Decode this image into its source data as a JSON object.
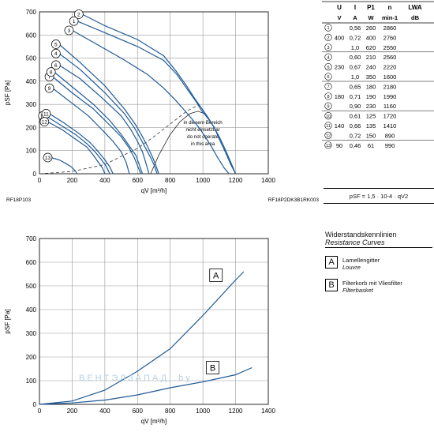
{
  "chart_data": [
    {
      "type": "line",
      "xlabel": "qV [m³/h]",
      "ylabel": "pSF [Pa]",
      "xlim": [
        0,
        1400
      ],
      "ylim": [
        0,
        700
      ],
      "x_ticks": [
        0,
        200,
        400,
        600,
        800,
        1000,
        1200,
        1400
      ],
      "y_ticks": [
        0,
        100,
        200,
        300,
        400,
        500,
        600,
        700
      ],
      "grid": true,
      "code_left": "RF18P103",
      "code_right": "RF18P2DK3B1RK003",
      "region_note": [
        "in diesem Bereich",
        "nicht einsetzbar",
        "do not operate",
        "in this area"
      ],
      "series": [
        {
          "name": "1",
          "x": [
            230,
            400,
            600,
            760,
            840,
            880,
            920,
            960,
            990,
            1030,
            1070,
            1100,
            1140,
            1170,
            1200
          ],
          "y": [
            660,
            610,
            550,
            490,
            430,
            390,
            350,
            310,
            275,
            240,
            200,
            150,
            90,
            40,
            0
          ]
        },
        {
          "name": "2",
          "x": [
            260,
            400,
            600,
            760,
            840,
            900,
            950,
            990,
            1030,
            1060,
            1100,
            1140,
            1170,
            1200
          ],
          "y": [
            690,
            640,
            580,
            510,
            440,
            380,
            325,
            285,
            245,
            210,
            160,
            100,
            50,
            0
          ]
        },
        {
          "name": "3",
          "x": [
            200,
            350,
            500,
            660,
            760,
            830,
            880,
            930,
            970,
            1010,
            1050,
            1090,
            1130,
            1160
          ],
          "y": [
            620,
            560,
            500,
            430,
            370,
            320,
            280,
            240,
            205,
            165,
            120,
            70,
            25,
            0
          ]
        },
        {
          "name": "4",
          "x": [
            120,
            250,
            400,
            520,
            580,
            620,
            650,
            680,
            700,
            720
          ],
          "y": [
            520,
            450,
            350,
            260,
            200,
            150,
            110,
            70,
            40,
            0
          ]
        },
        {
          "name": "5",
          "x": [
            120,
            250,
            400,
            520,
            590,
            630,
            660,
            690,
            710,
            730
          ],
          "y": [
            560,
            480,
            380,
            280,
            210,
            160,
            120,
            75,
            40,
            0
          ]
        },
        {
          "name": "6",
          "x": [
            120,
            250,
            380,
            500,
            560,
            600,
            630,
            650,
            670
          ],
          "y": [
            470,
            410,
            330,
            250,
            190,
            140,
            95,
            50,
            0
          ]
        },
        {
          "name": "7",
          "x": [
            80,
            200,
            330,
            430,
            500,
            550,
            580,
            600,
            620
          ],
          "y": [
            420,
            350,
            280,
            210,
            160,
            110,
            70,
            35,
            0
          ]
        },
        {
          "name": "8",
          "x": [
            90,
            210,
            330,
            430,
            500,
            550,
            590,
            610,
            630
          ],
          "y": [
            440,
            370,
            300,
            230,
            170,
            120,
            80,
            40,
            0
          ]
        },
        {
          "name": "9",
          "x": [
            80,
            190,
            300,
            390,
            450,
            500,
            530,
            550
          ],
          "y": [
            370,
            310,
            250,
            185,
            140,
            95,
            50,
            0
          ]
        },
        {
          "name": "10",
          "x": [
            40,
            130,
            220,
            290,
            340,
            380,
            410,
            430
          ],
          "y": [
            250,
            210,
            170,
            130,
            95,
            60,
            30,
            0
          ]
        },
        {
          "name": "11",
          "x": [
            60,
            150,
            240,
            310,
            360,
            400,
            430,
            450
          ],
          "y": [
            260,
            220,
            175,
            135,
            95,
            60,
            30,
            0
          ]
        },
        {
          "name": "12",
          "x": [
            50,
            140,
            220,
            290,
            330,
            360,
            385,
            400
          ],
          "y": [
            225,
            190,
            150,
            115,
            80,
            50,
            25,
            0
          ]
        },
        {
          "name": "13",
          "x": [
            70,
            120,
            160,
            195,
            220,
            230
          ],
          "y": [
            70,
            60,
            45,
            30,
            12,
            0
          ]
        }
      ],
      "system_curve_x": [
        0,
        200,
        400,
        600,
        700,
        800,
        900,
        980
      ],
      "system_curve_y": [
        0,
        10,
        40,
        110,
        160,
        215,
        270,
        300
      ],
      "boundary_curve_x": [
        680,
        730,
        800,
        860,
        920,
        970,
        1010
      ],
      "boundary_curve_y": [
        0,
        80,
        170,
        225,
        260,
        270,
        260
      ]
    },
    {
      "type": "line",
      "xlabel": "qV [m³/h]",
      "ylabel": "pSF [Pa]",
      "xlim": [
        0,
        1400
      ],
      "ylim": [
        0,
        700
      ],
      "x_ticks": [
        0,
        200,
        400,
        600,
        800,
        1000,
        1200,
        1400
      ],
      "y_ticks": [
        0,
        100,
        200,
        300,
        400,
        500,
        600,
        700
      ],
      "grid": true,
      "series": [
        {
          "name": "A",
          "x": [
            0,
            200,
            400,
            600,
            800,
            1000,
            1200,
            1250
          ],
          "y": [
            0,
            14,
            60,
            140,
            235,
            375,
            525,
            560
          ]
        },
        {
          "name": "B",
          "x": [
            0,
            200,
            400,
            600,
            800,
            1000,
            1200,
            1300
          ],
          "y": [
            0,
            6,
            18,
            40,
            70,
            95,
            125,
            155
          ]
        }
      ]
    }
  ],
  "table": {
    "headers": [
      "U",
      "I",
      "P1",
      "n",
      "LWA"
    ],
    "units": [
      "V",
      "A",
      "W",
      "min-1",
      "dB"
    ],
    "rows": [
      {
        "no": "1",
        "U": "",
        "I": "0,56",
        "P": "260",
        "n": "2860"
      },
      {
        "no": "2",
        "U": "400",
        "I": "0,72",
        "P": "400",
        "n": "2760"
      },
      {
        "no": "3",
        "U": "",
        "I": "1,0",
        "P": "620",
        "n": "2550"
      },
      {
        "no": "4",
        "U": "",
        "I": "0,60",
        "P": "210",
        "n": "2560"
      },
      {
        "no": "5",
        "U": "230",
        "I": "0,67",
        "P": "240",
        "n": "2220"
      },
      {
        "no": "6",
        "U": "",
        "I": "1,0",
        "P": "350",
        "n": "1600"
      },
      {
        "no": "7",
        "U": "",
        "I": "0,65",
        "P": "180",
        "n": "2180"
      },
      {
        "no": "8",
        "U": "180",
        "I": "0,71",
        "P": "190",
        "n": "1990"
      },
      {
        "no": "9",
        "U": "",
        "I": "0,90",
        "P": "230",
        "n": "1160"
      },
      {
        "no": "10",
        "U": "",
        "I": "0,61",
        "P": "125",
        "n": "1720"
      },
      {
        "no": "11",
        "U": "140",
        "I": "0,66",
        "P": "135",
        "n": "1410"
      },
      {
        "no": "12",
        "U": "",
        "I": "0,72",
        "P": "150",
        "n": "890"
      },
      {
        "no": "13",
        "U": "90",
        "I": "0,46",
        "P": "61",
        "n": "990"
      }
    ]
  },
  "formula": "pSF = 1,5 · 10-4 · qV2",
  "legend": {
    "title": "Widerstandskennlinien",
    "subtitle": "Resistance Curves",
    "items": [
      {
        "key": "A",
        "de": "Lamellengitter",
        "en": "Louvre"
      },
      {
        "key": "B",
        "de": "Filterkorb mit Vliesfilter",
        "en": "Filterbasket"
      }
    ]
  },
  "watermark": "ВЕНТЭЛЗАПАД     .by",
  "colors": {
    "curve": "#1f5a96",
    "dashed": "#333333",
    "grid": "#9a9a9a"
  }
}
